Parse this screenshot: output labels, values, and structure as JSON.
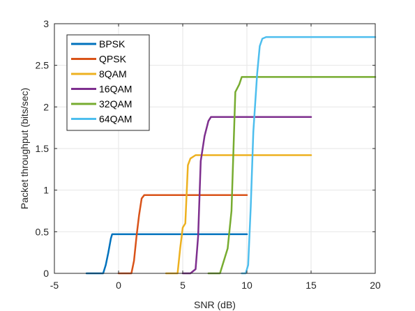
{
  "chart_data": {
    "type": "line",
    "title": "",
    "xlabel": "SNR (dB)",
    "ylabel": "Packet throughput (bits/sec)",
    "xlim": [
      -5,
      20
    ],
    "ylim": [
      0,
      3
    ],
    "xticks": [
      -5,
      0,
      5,
      10,
      15,
      20
    ],
    "yticks": [
      0,
      0.5,
      1,
      1.5,
      2,
      2.5,
      3
    ],
    "xtick_labels": [
      "-5",
      "0",
      "5",
      "10",
      "15",
      "20"
    ],
    "ytick_labels": [
      "0",
      "0.5",
      "1",
      "1.5",
      "2",
      "2.5",
      "3"
    ],
    "grid": true,
    "legend_position": "top-left",
    "series": [
      {
        "name": "BPSK",
        "color": "#0072BD",
        "x": [
          -2.5,
          -1.2,
          -1.0,
          -0.8,
          -0.6,
          -0.5,
          -0.3,
          0,
          5,
          10
        ],
        "y": [
          0,
          0,
          0.1,
          0.25,
          0.42,
          0.47,
          0.47,
          0.47,
          0.47,
          0.47
        ]
      },
      {
        "name": "QPSK",
        "color": "#D95319",
        "x": [
          0,
          1.0,
          1.2,
          1.4,
          1.6,
          1.8,
          2.0,
          2.5,
          5,
          10
        ],
        "y": [
          0,
          0,
          0.15,
          0.45,
          0.7,
          0.9,
          0.94,
          0.94,
          0.94,
          0.94
        ]
      },
      {
        "name": "8QAM",
        "color": "#EDB120",
        "x": [
          3.7,
          4.6,
          4.8,
          5.0,
          5.2,
          5.4,
          5.6,
          6.0,
          10,
          15
        ],
        "y": [
          0,
          0,
          0.3,
          0.55,
          0.6,
          1.3,
          1.38,
          1.42,
          1.42,
          1.42
        ]
      },
      {
        "name": "16QAM",
        "color": "#7E2F8E",
        "x": [
          5.0,
          5.6,
          6.0,
          6.2,
          6.4,
          6.7,
          7.0,
          7.2,
          10,
          15
        ],
        "y": [
          0,
          0,
          0.05,
          0.45,
          1.35,
          1.65,
          1.83,
          1.88,
          1.88,
          1.88
        ]
      },
      {
        "name": "32QAM",
        "color": "#77AC30",
        "x": [
          7.0,
          7.9,
          8.2,
          8.5,
          8.8,
          9.1,
          9.4,
          9.6,
          10,
          15,
          20
        ],
        "y": [
          0,
          0,
          0.15,
          0.3,
          0.75,
          2.18,
          2.27,
          2.36,
          2.36,
          2.36,
          2.36
        ]
      },
      {
        "name": "64QAM",
        "color": "#4DBEEE",
        "x": [
          9.6,
          9.9,
          10.1,
          10.3,
          10.5,
          10.8,
          11.0,
          11.2,
          11.5,
          15,
          20
        ],
        "y": [
          0,
          0,
          0.1,
          0.8,
          1.7,
          2.4,
          2.73,
          2.82,
          2.84,
          2.84,
          2.84
        ]
      }
    ]
  }
}
